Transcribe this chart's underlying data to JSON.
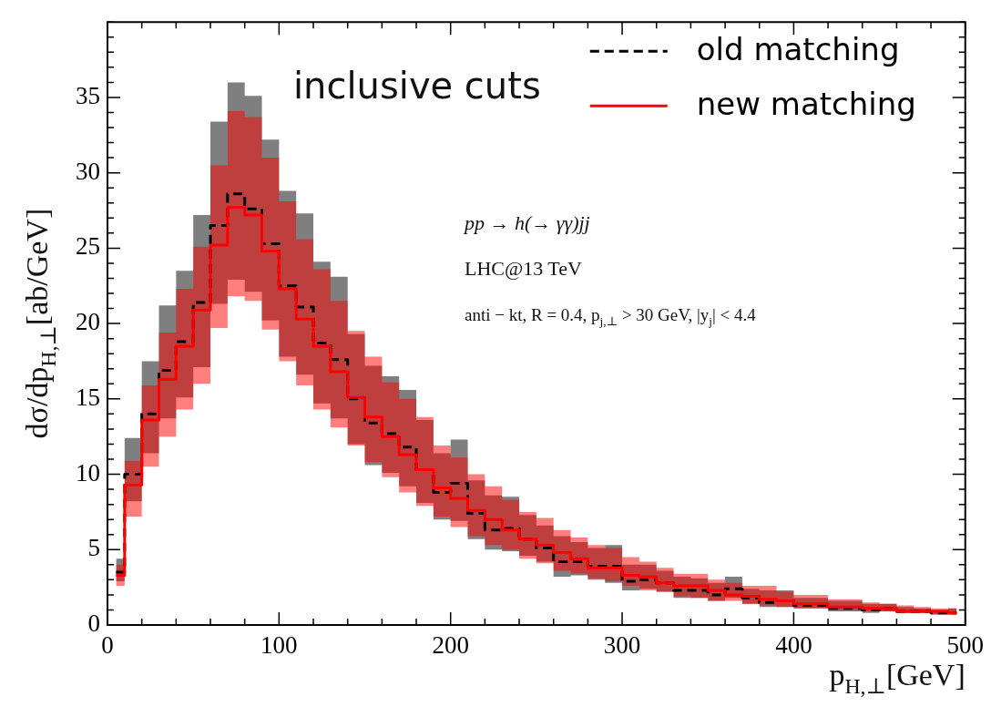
{
  "chart_data": {
    "type": "step",
    "xlabel": "p$_{H,⊥}$[GeV]",
    "ylabel": "dσ/dp$_{H,⊥}$[ab/GeV]",
    "annotations": [
      "inclusive cuts",
      "pp → h(→ γγ)jj",
      "LHC@13 TeV",
      "anti − kt, R = 0.4, p$_{j,⊥}$ > 30 GeV, |y$_{j}$| < 4.4"
    ],
    "x": [
      5,
      15,
      25,
      35,
      45,
      55,
      65,
      75,
      85,
      95,
      105,
      115,
      125,
      135,
      145,
      155,
      165,
      175,
      185,
      195,
      205,
      215,
      225,
      235,
      245,
      255,
      265,
      275,
      285,
      295,
      305,
      315,
      325,
      335,
      345,
      355,
      365,
      375,
      385,
      395,
      405,
      415,
      425,
      435,
      445,
      455,
      465,
      475,
      485,
      495
    ],
    "series": [
      {
        "name": "old matching",
        "color": "#000000",
        "line_style": "dashed",
        "values": [
          3.5,
          10.0,
          14.0,
          16.9,
          18.8,
          21.4,
          26.5,
          28.6,
          27.6,
          25.3,
          22.5,
          21.1,
          18.7,
          17.6,
          15.0,
          13.4,
          12.7,
          11.8,
          10.3,
          8.8,
          9.4,
          7.4,
          6.3,
          6.4,
          5.7,
          5.1,
          4.2,
          4.2,
          3.9,
          3.9,
          2.9,
          3.0,
          2.8,
          2.3,
          2.3,
          2.0,
          2.4,
          1.8,
          1.5,
          1.6,
          1.3,
          1.3,
          1.1,
          1.1,
          1.0,
          1.1,
          0.9,
          0.9,
          0.8,
          0.8
        ],
        "lower": [
          2.9,
          8.2,
          11.4,
          13.7,
          15.1,
          17.1,
          21.3,
          22.9,
          22.1,
          20.2,
          17.8,
          16.6,
          14.7,
          13.7,
          12.0,
          10.6,
          10.1,
          9.2,
          8.1,
          7.0,
          6.9,
          5.7,
          5.0,
          4.9,
          4.6,
          4.2,
          3.2,
          3.3,
          3.0,
          2.8,
          2.3,
          2.4,
          2.2,
          1.8,
          1.8,
          1.6,
          1.8,
          1.4,
          1.2,
          1.2,
          1.1,
          1.1,
          0.9,
          0.9,
          0.8,
          0.9,
          0.8,
          0.8,
          0.7,
          0.7
        ],
        "upper": [
          4.4,
          12.4,
          17.5,
          21.2,
          23.5,
          27.2,
          33.4,
          36.0,
          35.1,
          32.2,
          28.8,
          27.3,
          24.1,
          23.1,
          19.3,
          17.2,
          16.5,
          15.6,
          13.6,
          11.4,
          12.3,
          9.6,
          8.6,
          8.5,
          7.3,
          6.6,
          5.9,
          5.5,
          5.1,
          5.3,
          4.0,
          4.0,
          3.6,
          3.2,
          3.1,
          2.8,
          3.2,
          2.4,
          2.3,
          2.3,
          1.8,
          1.8,
          1.6,
          1.6,
          1.4,
          1.4,
          1.2,
          1.1,
          1.0,
          1.1
        ]
      },
      {
        "name": "new matching",
        "color": "#ff0000",
        "line_style": "solid",
        "values": [
          3.3,
          9.3,
          13.6,
          16.3,
          18.5,
          20.9,
          25.2,
          27.7,
          27.2,
          24.8,
          22.3,
          20.3,
          18.5,
          16.8,
          15.1,
          13.8,
          12.5,
          11.3,
          10.3,
          9.1,
          8.4,
          7.6,
          7.0,
          6.3,
          5.7,
          5.3,
          4.8,
          4.4,
          3.8,
          3.8,
          3.3,
          3.2,
          2.8,
          2.6,
          2.6,
          2.3,
          2.0,
          1.9,
          1.7,
          1.6,
          1.4,
          1.4,
          1.2,
          1.2,
          1.1,
          1.1,
          0.9,
          0.9,
          0.9,
          0.8
        ],
        "lower": [
          2.6,
          7.2,
          10.5,
          12.5,
          14.3,
          16.0,
          19.7,
          21.8,
          21.5,
          19.6,
          17.5,
          15.9,
          14.3,
          13.1,
          11.9,
          10.8,
          9.8,
          8.8,
          7.9,
          7.2,
          6.5,
          5.9,
          5.3,
          5.0,
          4.4,
          4.1,
          3.6,
          3.4,
          3.1,
          2.9,
          2.6,
          2.3,
          2.2,
          1.9,
          1.8,
          1.6,
          1.6,
          1.4,
          1.3,
          1.2,
          1.1,
          1.1,
          1.0,
          1.0,
          0.9,
          0.9,
          0.8,
          0.8,
          0.7,
          0.7
        ],
        "upper": [
          4.0,
          10.9,
          15.9,
          19.4,
          22.3,
          25.1,
          30.5,
          34.1,
          33.7,
          31.0,
          28.1,
          25.6,
          23.6,
          21.5,
          19.5,
          17.8,
          16.1,
          15.0,
          13.8,
          11.9,
          11.1,
          10.0,
          9.2,
          8.3,
          7.5,
          7.1,
          6.3,
          5.8,
          5.3,
          5.1,
          4.5,
          4.2,
          3.8,
          3.4,
          3.4,
          3.0,
          2.8,
          2.6,
          2.6,
          2.2,
          2.0,
          2.0,
          1.7,
          1.7,
          1.5,
          1.4,
          1.3,
          1.2,
          1.1,
          1.1
        ]
      }
    ],
    "xlim": [
      0,
      500
    ],
    "ylim": [
      0,
      40
    ],
    "xticks": [
      0,
      {
        "value": 20,
        "label": null
      },
      {
        "value": 40,
        "label": null
      },
      {
        "value": 60,
        "label": null
      },
      {
        "value": 80,
        "label": null
      },
      100,
      {
        "value": 120,
        "label": null
      },
      {
        "value": 140,
        "label": null
      },
      {
        "value": 160,
        "label": null
      },
      {
        "value": 180,
        "label": null
      },
      200,
      {
        "value": 220,
        "label": null
      },
      {
        "value": 240,
        "label": null
      },
      {
        "value": 260,
        "label": null
      },
      {
        "value": 280,
        "label": null
      },
      300,
      {
        "value": 320,
        "label": null
      },
      {
        "value": 340,
        "label": null
      },
      {
        "value": 360,
        "label": null
      },
      {
        "value": 380,
        "label": null
      },
      400,
      {
        "value": 420,
        "label": null
      },
      {
        "value": 440,
        "label": null
      },
      {
        "value": 460,
        "label": null
      },
      {
        "value": 480,
        "label": null
      },
      500
    ],
    "yticks": [
      0,
      {
        "value": 1,
        "label": null
      },
      {
        "value": 2,
        "label": null
      },
      {
        "value": 3,
        "label": null
      },
      {
        "value": 4,
        "label": null
      },
      5,
      {
        "value": 6,
        "label": null
      },
      {
        "value": 7,
        "label": null
      },
      {
        "value": 8,
        "label": null
      },
      {
        "value": 9,
        "label": null
      },
      10,
      {
        "value": 11,
        "label": null
      },
      {
        "value": 12,
        "label": null
      },
      {
        "value": 13,
        "label": null
      },
      {
        "value": 14,
        "label": null
      },
      15,
      {
        "value": 16,
        "label": null
      },
      {
        "value": 17,
        "label": null
      },
      {
        "value": 18,
        "label": null
      },
      {
        "value": 19,
        "label": null
      },
      20,
      {
        "value": 21,
        "label": null
      },
      {
        "value": 22,
        "label": null
      },
      {
        "value": 23,
        "label": null
      },
      {
        "value": 24,
        "label": null
      },
      25,
      {
        "value": 26,
        "label": null
      },
      {
        "value": 27,
        "label": null
      },
      {
        "value": 28,
        "label": null
      },
      {
        "value": 29,
        "label": null
      },
      30,
      {
        "value": 31,
        "label": null
      },
      {
        "value": 32,
        "label": null
      },
      {
        "value": 33,
        "label": null
      },
      {
        "value": 34,
        "label": null
      },
      35,
      {
        "value": 36,
        "label": null
      },
      {
        "value": 37,
        "label": null
      },
      {
        "value": 38,
        "label": null
      },
      {
        "value": 39,
        "label": null
      },
      {
        "value": 40,
        "label": null
      }
    ],
    "legend": "top right"
  }
}
